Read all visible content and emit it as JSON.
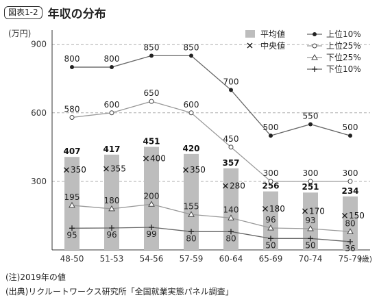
{
  "figure": {
    "label": "図表1-2",
    "title": "年収の分布"
  },
  "notes": {
    "note1": "(注)2019年の値",
    "note2": "(出典)リクルートワークス研究所「全国就業実態パネル調査」"
  },
  "chart_data": {
    "type": "bar",
    "title": "年収の分布",
    "ylabel": "(万円)",
    "xlabel_unit": "(歳)",
    "ylim": [
      0,
      950
    ],
    "yticks": [
      300,
      600,
      900
    ],
    "grid": true,
    "legend_position": "top-right",
    "categories": [
      "48-50",
      "51-53",
      "54-56",
      "57-59",
      "60-64",
      "65-69",
      "70-74",
      "75-79"
    ],
    "bar_series": {
      "name": "平均値",
      "values": [
        407,
        417,
        451,
        420,
        357,
        256,
        251,
        234
      ],
      "color": "#bdbdbd"
    },
    "median_series": {
      "name": "中央値",
      "marker": "×",
      "values": [
        350,
        355,
        400,
        350,
        280,
        180,
        170,
        150
      ]
    },
    "line_series": [
      {
        "name": "上位10%",
        "marker": "filled-circle",
        "values": [
          800,
          800,
          850,
          850,
          700,
          500,
          550,
          500
        ],
        "color": "#666666"
      },
      {
        "name": "上位25%",
        "marker": "open-circle",
        "values": [
          580,
          600,
          650,
          600,
          450,
          300,
          300,
          300
        ],
        "color": "#999999"
      },
      {
        "name": "下位25%",
        "marker": "open-triangle",
        "values": [
          195,
          180,
          200,
          155,
          140,
          96,
          93,
          80
        ],
        "color": "#999999"
      },
      {
        "name": "下位10%",
        "marker": "plus",
        "values": [
          95,
          96,
          99,
          80,
          80,
          50,
          50,
          36
        ],
        "color": "#666666"
      }
    ]
  }
}
